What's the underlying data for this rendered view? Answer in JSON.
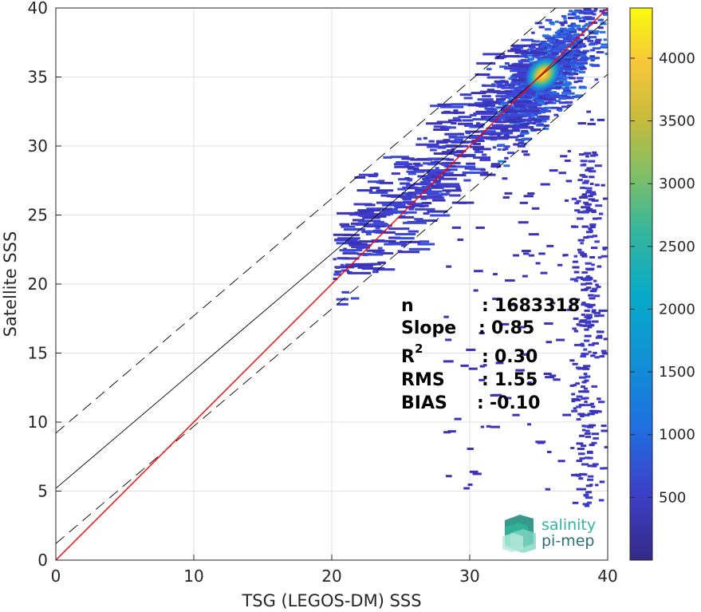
{
  "chart_data": {
    "type": "heatmap",
    "xlabel": "TSG (LEGOS-DM) SSS",
    "ylabel": "Satellite SSS",
    "xlim": [
      0,
      40
    ],
    "ylim": [
      0,
      40
    ],
    "xticks": [
      "0",
      "10",
      "20",
      "30",
      "40"
    ],
    "yticks": [
      "0",
      "5",
      "10",
      "15",
      "20",
      "25",
      "30",
      "35",
      "40"
    ],
    "grid": true,
    "colorbar": {
      "range": [
        0,
        4400
      ],
      "ticks": [
        "500",
        "1000",
        "1500",
        "2000",
        "2500",
        "3000",
        "3500",
        "4000"
      ],
      "colormap": "parula"
    },
    "density_peak": {
      "x": 35.3,
      "y": 35.2,
      "value": 4400
    },
    "lines": {
      "identity": {
        "slope": 1.0,
        "intercept": 0.0,
        "color": "#ff0000"
      },
      "fit": {
        "slope": 0.85,
        "intercept": 5.2,
        "color": "#000000"
      },
      "fit_upper": {
        "slope": 0.85,
        "intercept": 9.2,
        "style": "dashed"
      },
      "fit_lower": {
        "slope": 0.85,
        "intercept": 1.2,
        "style": "dashed"
      }
    },
    "stats": [
      {
        "label": "n",
        "sep": ":",
        "value": "1683318"
      },
      {
        "label": "Slope",
        "sep": ":",
        "value": "0.85"
      },
      {
        "label": "R",
        "sup": "2",
        "sep": ":",
        "value": "0.30"
      },
      {
        "label": "RMS",
        "sep": ":",
        "value": "1.55"
      },
      {
        "label": "BIAS",
        "sep": ":",
        "value": "-0.10"
      }
    ]
  },
  "logo": {
    "line1": "salinity",
    "line2": "pi-mep"
  }
}
